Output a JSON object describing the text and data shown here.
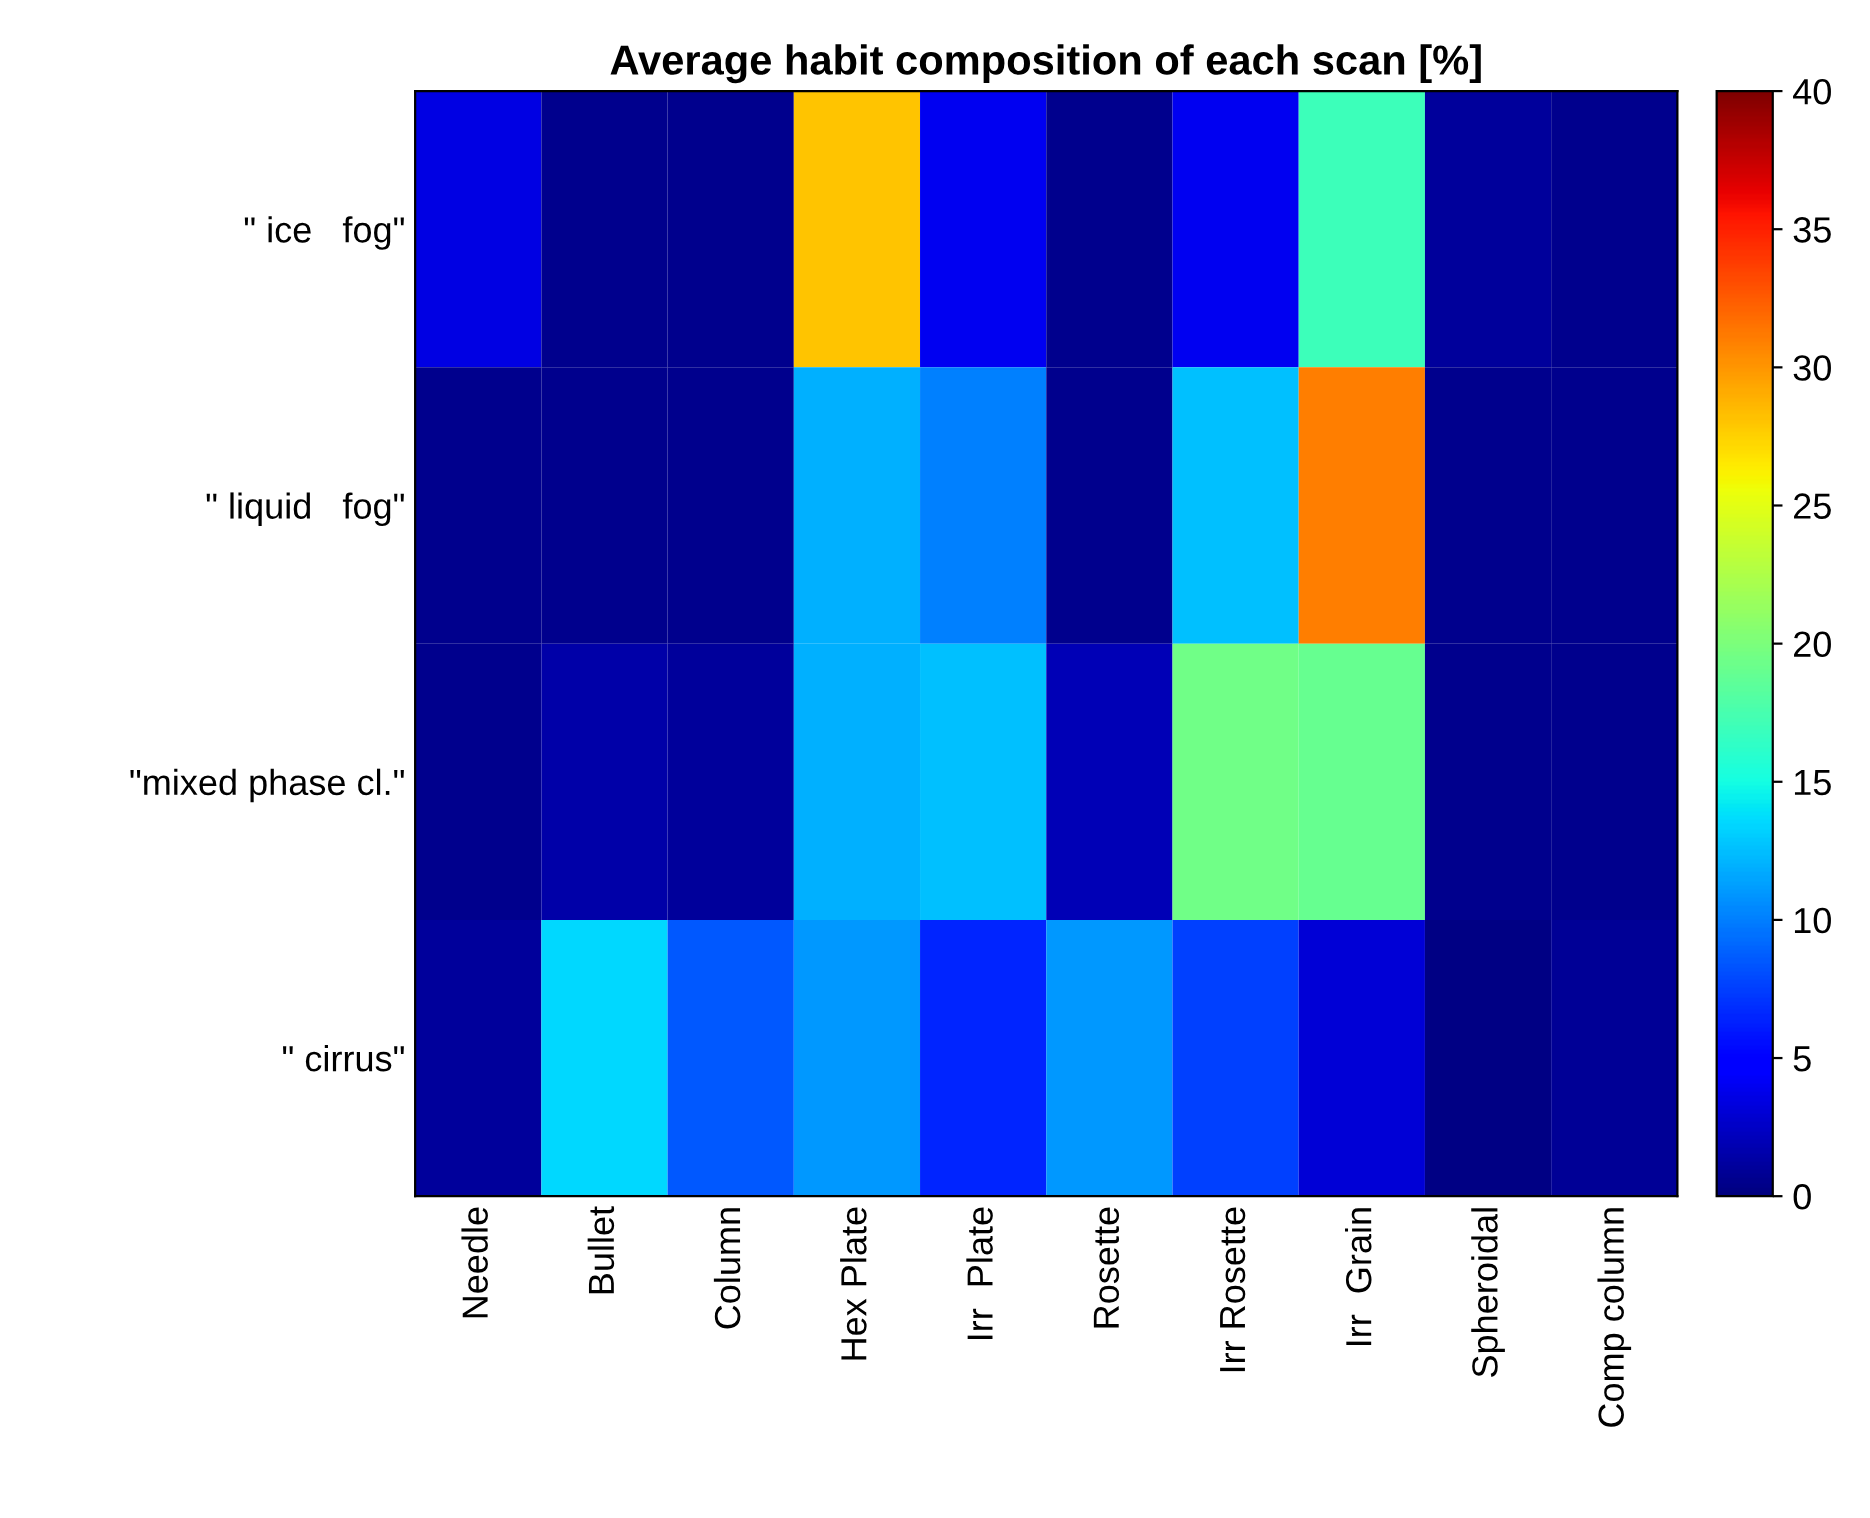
{
  "chart_data": {
    "type": "heatmap",
    "title": "Average habit composition of each scan [%]",
    "categories": [
      "Needle",
      "Bullet",
      "Column",
      "Hex Plate",
      "Irr  Plate",
      "Rosette",
      "Irr Rosette",
      "Irr  Grain",
      "Spheroidal",
      "Comp column"
    ],
    "y_categories": [
      "\" ice   fog\"",
      "\" liquid   fog\"",
      "\"mixed phase cl.\"",
      "\" cirrus\""
    ],
    "cells": [
      [
        3.5,
        0.5,
        0.5,
        28,
        4,
        0.5,
        4,
        17,
        1,
        0.5
      ],
      [
        0.5,
        0.5,
        0.5,
        12,
        10,
        0.5,
        12.5,
        31,
        0.5,
        0.5
      ],
      [
        0.5,
        1.5,
        1,
        12,
        12.5,
        2,
        19.5,
        19,
        0.5,
        0.5
      ],
      [
        1,
        13.5,
        8.5,
        11,
        6.5,
        11,
        7.5,
        3,
        0.3,
        0.8
      ]
    ],
    "clim": [
      0,
      40
    ],
    "cticks": [
      0,
      5,
      10,
      15,
      20,
      25,
      30,
      35,
      40
    ]
  }
}
